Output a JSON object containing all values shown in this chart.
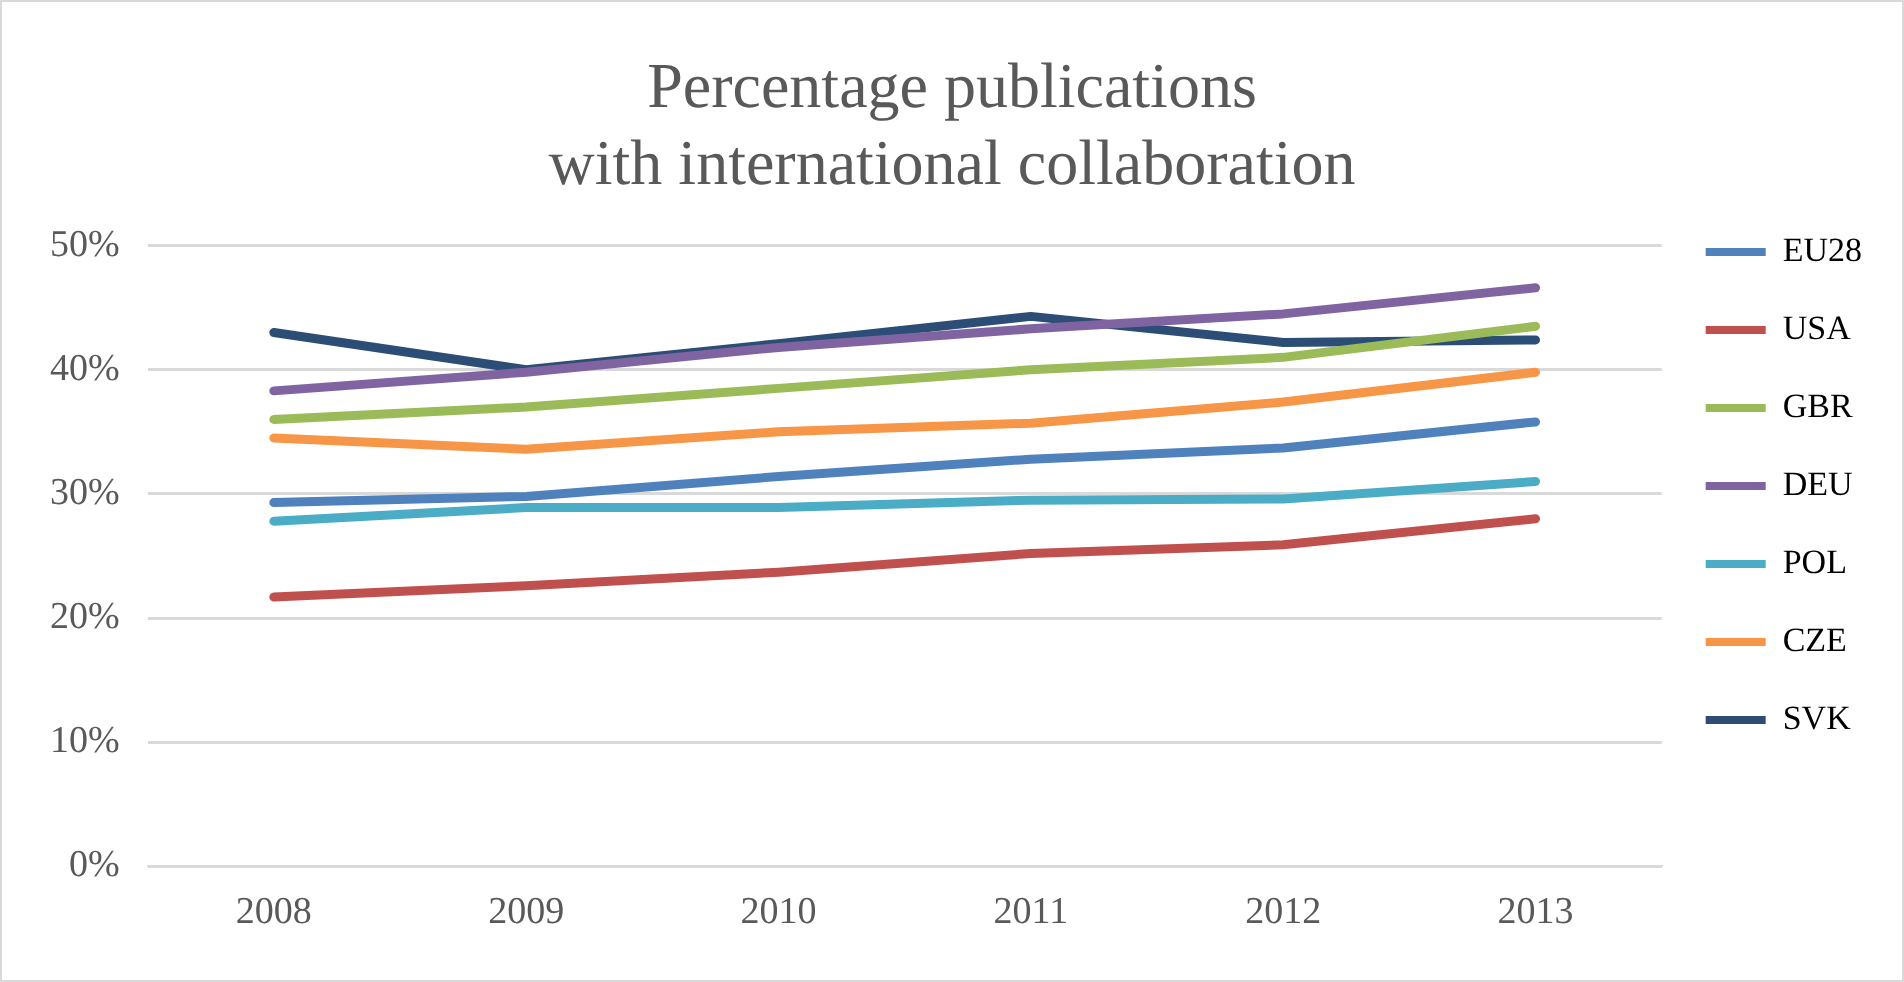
{
  "chart_data": {
    "type": "line",
    "title": "Percentage publications\nwith international collaboration",
    "categories": [
      "2008",
      "2009",
      "2010",
      "2011",
      "2012",
      "2013"
    ],
    "series": [
      {
        "name": "EU28",
        "color": "#4f81bd",
        "values": [
          29.3,
          29.8,
          31.4,
          32.8,
          33.7,
          35.8
        ]
      },
      {
        "name": "USA",
        "color": "#c0504d",
        "values": [
          21.7,
          22.6,
          23.7,
          25.2,
          25.9,
          28.0
        ]
      },
      {
        "name": "GBR",
        "color": "#9bbb59",
        "values": [
          36.0,
          37.0,
          38.5,
          40.0,
          41.0,
          43.5
        ]
      },
      {
        "name": "DEU",
        "color": "#8064a2",
        "values": [
          38.3,
          39.8,
          41.8,
          43.3,
          44.5,
          46.6
        ]
      },
      {
        "name": "POL",
        "color": "#4bacc6",
        "values": [
          27.8,
          28.9,
          28.9,
          29.5,
          29.6,
          31.0
        ]
      },
      {
        "name": "CZE",
        "color": "#f79646",
        "values": [
          34.5,
          33.6,
          35.0,
          35.7,
          37.4,
          39.8
        ]
      },
      {
        "name": "SVK",
        "color": "#2c4d75",
        "values": [
          43.0,
          40.0,
          42.1,
          44.3,
          42.2,
          42.4
        ]
      }
    ],
    "ylim": [
      0,
      50
    ],
    "yticks": [
      {
        "value": 0,
        "label": "0%"
      },
      {
        "value": 10,
        "label": "10%"
      },
      {
        "value": 20,
        "label": "20%"
      },
      {
        "value": 30,
        "label": "30%"
      },
      {
        "value": 40,
        "label": "40%"
      },
      {
        "value": 50,
        "label": "50%"
      }
    ],
    "grid": "y",
    "legend": "right",
    "marker": "none",
    "line_style": "solid"
  }
}
